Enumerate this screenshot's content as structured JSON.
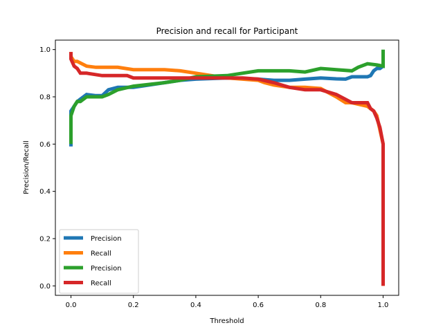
{
  "chart_data": {
    "type": "line",
    "title": "Precision and recall for Participant",
    "xlabel": "Threshold",
    "ylabel": "Precision/Recall",
    "xlim": [
      -0.05,
      1.05
    ],
    "ylim": [
      -0.04,
      1.04
    ],
    "xticks": [
      "0.0",
      "0.2",
      "0.4",
      "0.6",
      "0.8",
      "1.0"
    ],
    "yticks": [
      "0.0",
      "0.2",
      "0.4",
      "0.6",
      "0.8",
      "1.0"
    ],
    "grid": false,
    "legend_position": "lower-left",
    "series": [
      {
        "name": "Precision",
        "color": "#1f77b4",
        "x": [
          0.0,
          0.0,
          0.005,
          0.01,
          0.02,
          0.03,
          0.05,
          0.08,
          0.1,
          0.12,
          0.15,
          0.2,
          0.3,
          0.35,
          0.4,
          0.5,
          0.6,
          0.65,
          0.7,
          0.75,
          0.8,
          0.85,
          0.88,
          0.9,
          0.95,
          0.96,
          0.97,
          0.98,
          0.99,
          1.0,
          1.0
        ],
        "y": [
          0.59,
          0.74,
          0.75,
          0.76,
          0.78,
          0.79,
          0.81,
          0.805,
          0.805,
          0.83,
          0.84,
          0.84,
          0.86,
          0.87,
          0.875,
          0.88,
          0.875,
          0.87,
          0.87,
          0.875,
          0.88,
          0.876,
          0.875,
          0.885,
          0.885,
          0.89,
          0.91,
          0.92,
          0.92,
          0.93,
          0.95
        ]
      },
      {
        "name": "Recall",
        "color": "#ff7f0e",
        "x": [
          0.0,
          0.0,
          0.01,
          0.02,
          0.05,
          0.08,
          0.1,
          0.15,
          0.2,
          0.3,
          0.35,
          0.4,
          0.45,
          0.5,
          0.6,
          0.62,
          0.65,
          0.7,
          0.75,
          0.8,
          0.85,
          0.88,
          0.9,
          0.95,
          0.97,
          0.98,
          0.99,
          1.0,
          1.0
        ],
        "y": [
          0.99,
          0.97,
          0.95,
          0.95,
          0.93,
          0.925,
          0.925,
          0.925,
          0.915,
          0.915,
          0.91,
          0.9,
          0.89,
          0.88,
          0.87,
          0.86,
          0.85,
          0.84,
          0.84,
          0.835,
          0.8,
          0.775,
          0.775,
          0.76,
          0.74,
          0.72,
          0.66,
          0.6,
          0.0
        ]
      },
      {
        "name": "Precision",
        "color": "#2ca02c",
        "x": [
          0.0,
          0.0,
          0.005,
          0.01,
          0.02,
          0.03,
          0.05,
          0.08,
          0.1,
          0.12,
          0.15,
          0.2,
          0.3,
          0.35,
          0.4,
          0.5,
          0.55,
          0.6,
          0.7,
          0.75,
          0.8,
          0.85,
          0.9,
          0.92,
          0.95,
          0.98,
          1.0,
          1.0
        ],
        "y": [
          0.6,
          0.72,
          0.74,
          0.76,
          0.78,
          0.78,
          0.8,
          0.8,
          0.8,
          0.81,
          0.83,
          0.845,
          0.86,
          0.87,
          0.885,
          0.89,
          0.9,
          0.91,
          0.91,
          0.905,
          0.92,
          0.915,
          0.91,
          0.925,
          0.94,
          0.935,
          0.93,
          1.0
        ]
      },
      {
        "name": "Recall",
        "color": "#d62728",
        "x": [
          0.0,
          0.0,
          0.01,
          0.02,
          0.03,
          0.05,
          0.1,
          0.15,
          0.18,
          0.2,
          0.3,
          0.35,
          0.45,
          0.55,
          0.6,
          0.65,
          0.7,
          0.75,
          0.8,
          0.85,
          0.9,
          0.92,
          0.95,
          0.96,
          0.97,
          0.98,
          0.99,
          1.0,
          1.0
        ],
        "y": [
          0.99,
          0.96,
          0.93,
          0.92,
          0.9,
          0.9,
          0.89,
          0.89,
          0.89,
          0.88,
          0.88,
          0.88,
          0.88,
          0.88,
          0.875,
          0.86,
          0.84,
          0.83,
          0.83,
          0.81,
          0.775,
          0.775,
          0.775,
          0.75,
          0.74,
          0.71,
          0.67,
          0.6,
          0.0
        ]
      }
    ]
  }
}
